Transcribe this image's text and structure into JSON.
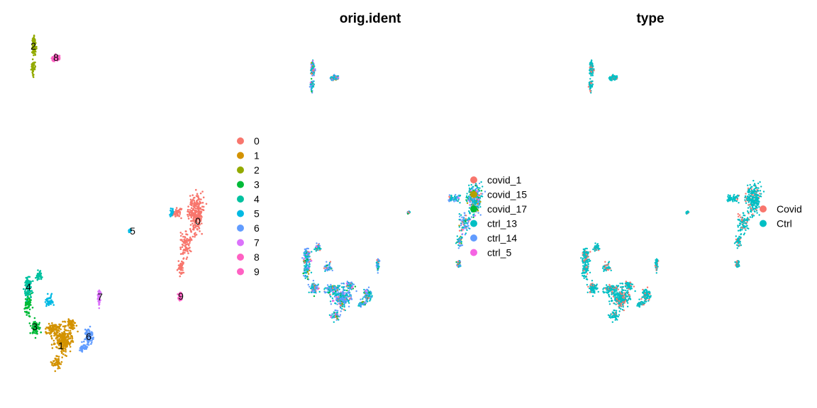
{
  "panels": [
    {
      "id": "seurat_clusters",
      "title": "",
      "legend": [
        {
          "label": "0",
          "color": "#F8766D"
        },
        {
          "label": "1",
          "color": "#D39200"
        },
        {
          "label": "2",
          "color": "#93AA00"
        },
        {
          "label": "3",
          "color": "#00BA38"
        },
        {
          "label": "4",
          "color": "#00C19F"
        },
        {
          "label": "5",
          "color": "#00B9E3"
        },
        {
          "label": "6",
          "color": "#619CFF"
        },
        {
          "label": "7",
          "color": "#DB72FB"
        },
        {
          "label": "8",
          "color": "#FF61C3"
        },
        {
          "label": "9",
          "color": "#FF61C3"
        }
      ],
      "cluster_labels": [
        "0",
        "1",
        "2",
        "3",
        "4",
        "5",
        "6",
        "7",
        "8",
        "9"
      ]
    },
    {
      "id": "orig.ident",
      "title": "orig.ident",
      "legend": [
        {
          "label": "covid_1",
          "color": "#F8766D"
        },
        {
          "label": "covid_15",
          "color": "#B79F00"
        },
        {
          "label": "covid_17",
          "color": "#00BA38"
        },
        {
          "label": "ctrl_13",
          "color": "#00BFC4"
        },
        {
          "label": "ctrl_14",
          "color": "#619CFF"
        },
        {
          "label": "ctrl_5",
          "color": "#F564E3"
        }
      ]
    },
    {
      "id": "type",
      "title": "type",
      "legend": [
        {
          "label": "Covid",
          "color": "#F8766D"
        },
        {
          "label": "Ctrl",
          "color": "#00BFC4"
        }
      ]
    }
  ],
  "chart_data": [
    {
      "type": "scatter",
      "title": "",
      "xlabel": "",
      "ylabel": "",
      "grid": false,
      "legend_position": "right",
      "series": [
        {
          "name": "0",
          "color": "#F8766D"
        },
        {
          "name": "1",
          "color": "#D39200"
        },
        {
          "name": "2",
          "color": "#93AA00"
        },
        {
          "name": "3",
          "color": "#00BA38"
        },
        {
          "name": "4",
          "color": "#00C19F"
        },
        {
          "name": "5",
          "color": "#00B9E3"
        },
        {
          "name": "6",
          "color": "#619CFF"
        },
        {
          "name": "7",
          "color": "#DB72FB"
        },
        {
          "name": "8",
          "color": "#FF61C3"
        },
        {
          "name": "9",
          "color": "#FF61C3"
        }
      ]
    },
    {
      "type": "scatter",
      "title": "orig.ident",
      "xlabel": "",
      "ylabel": "",
      "grid": false,
      "legend_position": "right",
      "series": [
        {
          "name": "covid_1",
          "color": "#F8766D"
        },
        {
          "name": "covid_15",
          "color": "#B79F00"
        },
        {
          "name": "covid_17",
          "color": "#00BA38"
        },
        {
          "name": "ctrl_13",
          "color": "#00BFC4"
        },
        {
          "name": "ctrl_14",
          "color": "#619CFF"
        },
        {
          "name": "ctrl_5",
          "color": "#F564E3"
        }
      ]
    },
    {
      "type": "scatter",
      "title": "type",
      "xlabel": "",
      "ylabel": "",
      "grid": false,
      "legend_position": "right",
      "series": [
        {
          "name": "Covid",
          "color": "#F8766D"
        },
        {
          "name": "Ctrl",
          "color": "#00BFC4"
        }
      ]
    }
  ]
}
